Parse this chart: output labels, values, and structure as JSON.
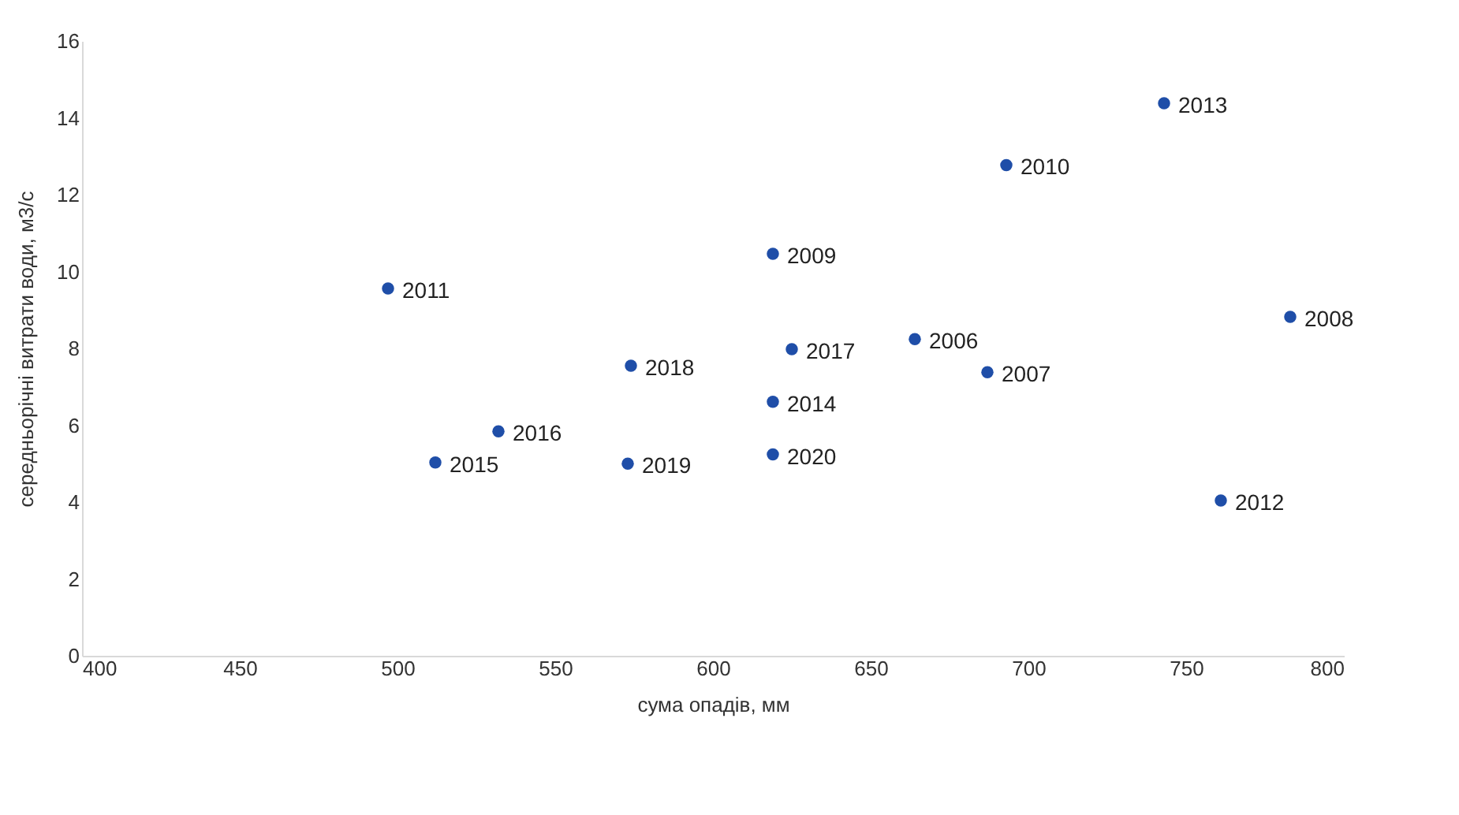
{
  "chart_data": {
    "type": "scatter",
    "xlabel": "сума опадів, мм",
    "ylabel": "середньорічні витрати води, м3/с",
    "x": [
      664,
      687,
      783,
      619,
      693,
      497,
      761,
      743,
      619,
      512,
      532,
      625,
      574,
      573,
      619
    ],
    "series": [
      {
        "color": "#1f4ea8",
        "values": [
          8.24,
          7.38,
          8.82,
          10.46,
          12.77,
          9.56,
          4.04,
          14.38,
          6.61,
          5.03,
          5.84,
          7.98,
          7.55,
          5.0,
          5.24
        ]
      }
    ],
    "annotations": [
      {
        "text": "2006",
        "x": 664,
        "y": 8.24
      },
      {
        "text": "2007",
        "x": 687,
        "y": 7.38
      },
      {
        "text": "2008",
        "x": 783,
        "y": 8.82
      },
      {
        "text": "2009",
        "x": 619,
        "y": 10.46
      },
      {
        "text": "2010",
        "x": 693,
        "y": 12.77
      },
      {
        "text": "2011",
        "x": 497,
        "y": 9.56
      },
      {
        "text": "2012",
        "x": 761,
        "y": 4.04
      },
      {
        "text": "2013",
        "x": 743,
        "y": 14.38
      },
      {
        "text": "2014",
        "x": 619,
        "y": 6.61
      },
      {
        "text": "2015",
        "x": 512,
        "y": 5.03
      },
      {
        "text": "2016",
        "x": 532,
        "y": 5.84
      },
      {
        "text": "2017",
        "x": 625,
        "y": 7.98
      },
      {
        "text": "2018",
        "x": 574,
        "y": 7.55
      },
      {
        "text": "2019",
        "x": 573,
        "y": 5.0
      },
      {
        "text": "2020",
        "x": 619,
        "y": 5.24
      }
    ],
    "xlim": [
      400,
      800
    ],
    "xticks": [
      400,
      450,
      500,
      550,
      600,
      650,
      700,
      750,
      800
    ],
    "ylim": [
      0,
      16
    ],
    "yticks": [
      0,
      2,
      4,
      6,
      8,
      10,
      12,
      14,
      16
    ],
    "marker": "circle",
    "grid": false
  }
}
